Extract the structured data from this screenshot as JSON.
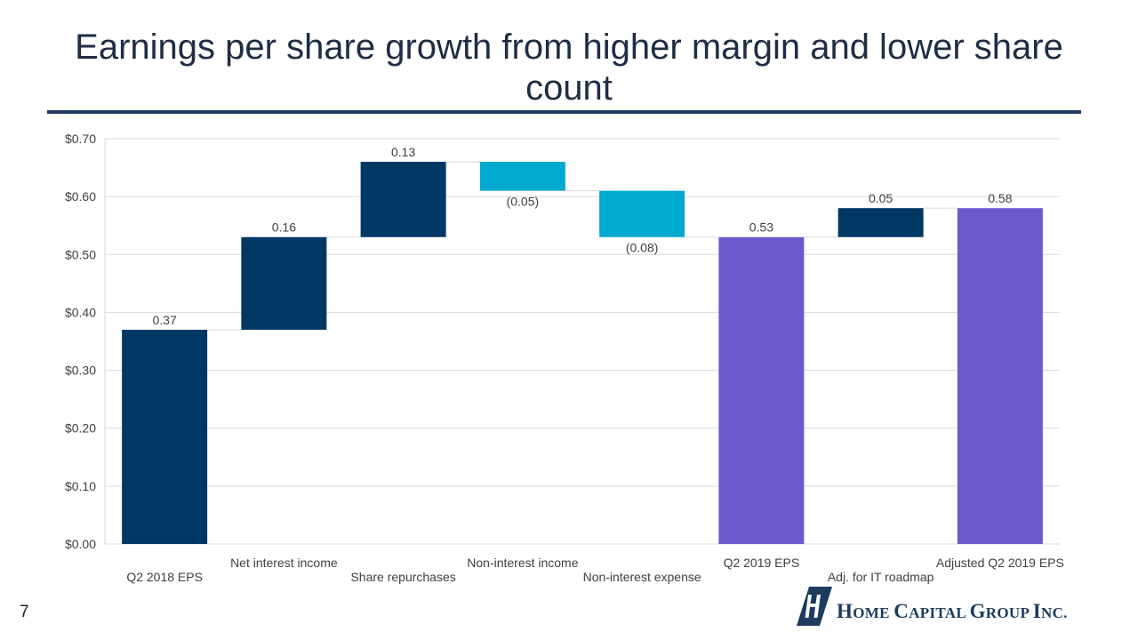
{
  "slide": {
    "title": "Earnings per share growth from higher margin and lower share count",
    "page_number": "7"
  },
  "logo": {
    "text": "Home Capital Group Inc.",
    "color": "#1c3b5e"
  },
  "chart_data": {
    "type": "bar",
    "subtype": "waterfall",
    "categories": [
      "Q2 2018 EPS",
      "Net interest income",
      "Share repurchases",
      "Non-interest income",
      "Non-interest expense",
      "Q2 2019 EPS",
      "Adj. for IT roadmap",
      "Adjusted Q2 2019 EPS"
    ],
    "values": [
      0.37,
      0.16,
      0.13,
      -0.05,
      -0.08,
      0.53,
      0.05,
      0.58
    ],
    "bar_kinds": [
      "total",
      "delta",
      "delta",
      "delta",
      "delta",
      "total",
      "delta",
      "total"
    ],
    "data_labels": [
      "0.37",
      "0.16",
      "0.13",
      "(0.05)",
      "(0.08)",
      "0.53",
      "0.05",
      "0.58"
    ],
    "ylim": [
      0,
      0.7
    ],
    "yticks": [
      0,
      0.1,
      0.2,
      0.3,
      0.4,
      0.5,
      0.6,
      0.7
    ],
    "ytick_labels": [
      "$0.00",
      "$0.10",
      "$0.20",
      "$0.30",
      "$0.40",
      "$0.50",
      "$0.60",
      "$0.70"
    ],
    "grid": true,
    "colors": {
      "start_total": "#003865",
      "increase": "#003865",
      "decrease": "#00a9ce",
      "total": "#6a5acd",
      "grid": "#d9d9d9",
      "text": "#404040"
    }
  }
}
